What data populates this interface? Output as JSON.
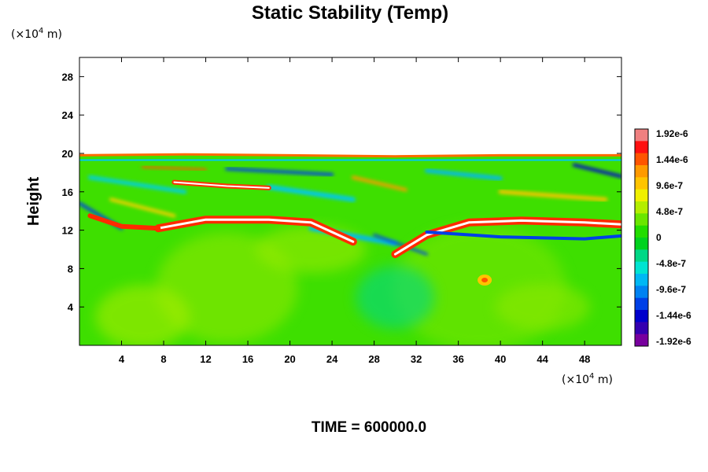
{
  "chart_data": {
    "type": "heatmap",
    "title": "Static Stability (Temp)",
    "ylabel": "Height",
    "xlabel": "",
    "x_unit": "(×10⁴ m)",
    "y_unit": "(×10⁴ m)",
    "x_unit_base": "(×10",
    "x_unit_exp": "4",
    "x_unit_end": " m)",
    "y_unit_base": "(×10",
    "y_unit_exp": "4",
    "y_unit_end": " m)",
    "xlim": [
      0,
      51.5
    ],
    "ylim": [
      0,
      30
    ],
    "xticks": [
      4,
      8,
      12,
      16,
      20,
      24,
      28,
      32,
      36,
      40,
      44,
      48
    ],
    "yticks": [
      4,
      8,
      12,
      16,
      20,
      24,
      28
    ],
    "colorbar": {
      "labels": [
        "1.92e-6",
        "1.44e-6",
        "9.6e-7",
        "4.8e-7",
        "0",
        "-4.8e-7",
        "-9.6e-7",
        "-1.44e-6",
        "-1.92e-6"
      ],
      "values": [
        1.92e-06,
        1.44e-06,
        9.6e-07,
        4.8e-07,
        0,
        -4.8e-07,
        -9.6e-07,
        -1.44e-06,
        -1.92e-06
      ],
      "colors": [
        "#f08080",
        "#ff1010",
        "#ff5500",
        "#ff9a00",
        "#ffc400",
        "#f0f000",
        "#b4ee00",
        "#6ae600",
        "#22dd00",
        "#00d21e",
        "#00d886",
        "#00e4d2",
        "#00b8f4",
        "#0082f2",
        "#0040e6",
        "#0000cc",
        "#3400b0",
        "#78009e"
      ]
    },
    "field_summary": {
      "data_top_height": 19.8,
      "background_value": 0,
      "strong_positive_layer_height": 12.8,
      "positive_feature_near": [
        38.5,
        6.8
      ]
    }
  },
  "footer": {
    "time_label": "TIME = 600000.0"
  }
}
